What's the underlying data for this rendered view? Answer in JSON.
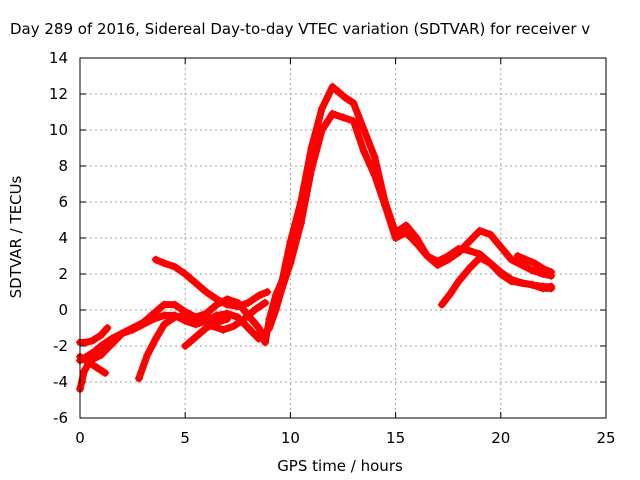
{
  "chart_data": {
    "type": "scatter",
    "title": "Day 289 of 2016, Sidereal Day-to-day VTEC variation (SDTVAR) for receiver v",
    "xlabel": "GPS time / hours",
    "ylabel": "SDTVAR / TECUs",
    "xlim": [
      0,
      25
    ],
    "ylim": [
      -6,
      14
    ],
    "xticks": [
      "0",
      "5",
      "10",
      "15",
      "20",
      "25"
    ],
    "yticks": [
      "-6",
      "-4",
      "-2",
      "0",
      "2",
      "4",
      "6",
      "8",
      "10",
      "12",
      "14"
    ],
    "grid": true,
    "marker": "+",
    "color": "#ff0000",
    "series": [
      {
        "x": [
          0.0,
          0.2,
          0.5,
          1.0,
          1.5,
          2.0,
          2.5,
          3.0,
          3.5,
          4.0,
          4.5,
          5.0,
          5.5,
          6.0,
          6.5,
          7.0,
          7.5,
          8.0,
          8.5,
          8.8,
          9.0,
          9.3,
          9.6,
          10.0,
          10.5,
          11.0,
          11.5,
          12.0,
          12.3,
          12.6,
          13.0,
          13.5,
          14.0,
          14.5,
          15.0,
          15.5,
          16.0,
          16.5,
          17.0,
          17.5,
          18.0,
          18.5,
          19.0,
          19.5,
          20.0,
          20.5,
          21.0,
          21.5,
          22.0,
          22.4
        ],
        "y": [
          -4.4,
          -3.4,
          -2.8,
          -2.5,
          -1.9,
          -1.3,
          -1.0,
          -0.7,
          -0.2,
          0.3,
          0.3,
          -0.1,
          -0.4,
          -0.2,
          0.3,
          0.6,
          0.4,
          -0.3,
          -1.0,
          -1.8,
          -0.5,
          0.8,
          1.6,
          3.8,
          6.0,
          9.0,
          11.2,
          12.4,
          12.1,
          11.8,
          11.5,
          10.0,
          8.5,
          6.0,
          4.3,
          4.7,
          4.0,
          3.0,
          2.5,
          2.8,
          3.2,
          3.8,
          4.4,
          4.2,
          3.5,
          2.8,
          2.5,
          2.2,
          2.0,
          1.9
        ]
      },
      {
        "x": [
          0.0,
          0.3,
          0.7,
          1.0,
          1.5,
          2.0,
          2.5,
          3.0,
          3.5,
          4.0,
          4.5,
          5.0,
          5.5,
          6.0,
          6.5,
          7.0,
          7.5,
          8.0,
          8.5,
          9.0,
          9.3,
          9.6,
          10.0,
          10.5,
          11.0,
          11.5,
          12.0,
          12.5,
          13.0,
          13.5,
          14.0,
          14.5,
          15.0,
          15.5,
          16.0,
          16.5,
          17.0,
          17.5,
          18.0,
          18.5,
          19.0,
          19.5,
          20.0,
          20.5,
          21.0,
          21.5,
          22.0,
          22.4
        ],
        "y": [
          -2.8,
          -2.6,
          -2.3,
          -2.0,
          -1.6,
          -1.3,
          -1.1,
          -0.8,
          -0.5,
          -0.3,
          -0.3,
          -0.6,
          -0.8,
          -0.6,
          -0.3,
          -0.2,
          -0.4,
          -1.0,
          -1.6,
          -1.0,
          0.0,
          1.2,
          2.6,
          4.8,
          7.8,
          10.0,
          10.9,
          10.7,
          10.5,
          8.8,
          7.5,
          5.8,
          4.0,
          4.3,
          3.7,
          3.0,
          2.7,
          3.0,
          3.4,
          3.3,
          3.1,
          2.6,
          2.0,
          1.6,
          1.5,
          1.4,
          1.3,
          1.3
        ]
      },
      {
        "x": [
          0.0,
          0.3,
          0.6,
          1.0,
          1.3
        ],
        "y": [
          -1.8,
          -1.8,
          -1.7,
          -1.4,
          -1.0
        ]
      },
      {
        "x": [
          0.0,
          0.4,
          0.8,
          1.2
        ],
        "y": [
          -2.6,
          -2.9,
          -3.2,
          -3.5
        ]
      },
      {
        "x": [
          2.8,
          3.2,
          3.6,
          4.0,
          4.5,
          5.0,
          5.5,
          5.9,
          6.3,
          6.8,
          7.3,
          7.8,
          8.3,
          8.8
        ],
        "y": [
          -3.8,
          -2.5,
          -1.6,
          -0.8,
          -0.4,
          -0.3,
          -0.4,
          -0.6,
          -0.9,
          -1.1,
          -0.9,
          -0.5,
          0.0,
          0.4
        ]
      },
      {
        "x": [
          3.6,
          4.0,
          4.5,
          5.0,
          5.5,
          6.0,
          6.5,
          7.0,
          7.5,
          8.0,
          8.5,
          8.9
        ],
        "y": [
          2.8,
          2.6,
          2.4,
          2.0,
          1.5,
          1.0,
          0.6,
          0.3,
          0.2,
          0.4,
          0.8,
          1.0
        ]
      },
      {
        "x": [
          5.0,
          5.5,
          6.0,
          6.5,
          7.0
        ],
        "y": [
          -2.0,
          -1.5,
          -1.0,
          -0.7,
          -0.5
        ]
      },
      {
        "x": [
          17.2,
          17.6,
          18.0,
          18.5,
          19.0,
          19.5,
          20.0,
          20.5,
          21.0,
          21.5,
          22.0,
          22.4
        ],
        "y": [
          0.3,
          0.9,
          1.6,
          2.3,
          2.9,
          2.6,
          2.1,
          1.7,
          1.5,
          1.4,
          1.2,
          1.2
        ]
      },
      {
        "x": [
          20.8,
          21.2,
          21.6,
          22.0,
          22.4
        ],
        "y": [
          3.0,
          2.8,
          2.6,
          2.3,
          2.1
        ]
      }
    ]
  }
}
